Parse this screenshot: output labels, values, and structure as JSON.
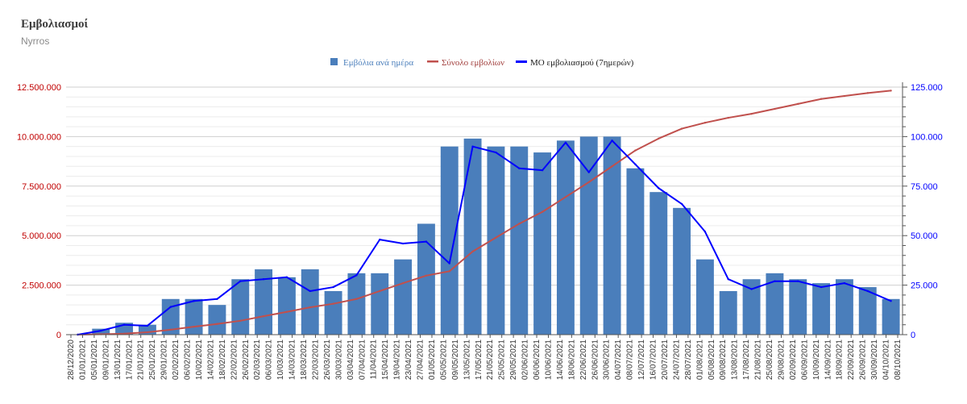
{
  "header": {
    "title": "Εμβολιασμοί",
    "subtitle": "Nyrros"
  },
  "legend": {
    "items": [
      {
        "label": "Εμβόλια ανά ημέρα",
        "color": "#4a7ebb",
        "kind": "bar"
      },
      {
        "label": "Σύνολο εμβολίων",
        "color": "#c0504d",
        "kind": "line"
      },
      {
        "label": "ΜΟ εμβολιασμού (7ημερών)",
        "color": "#0000ff",
        "kind": "line"
      }
    ]
  },
  "colors": {
    "bars": "#4a7ebb",
    "total_line": "#c0504d",
    "ma_line": "#0000ff",
    "left_axis_text": "#c00000",
    "right_axis_text": "#0000ff",
    "grid": "#d9d9d9"
  },
  "chart_data": {
    "type": "bar",
    "grid": true,
    "legend_position": "top",
    "categories": [
      "28/12/2020",
      "05/01/2021",
      "13/01/2021",
      "21/01/2021",
      "29/01/2021",
      "06/02/2021",
      "14/02/2021",
      "22/02/2021",
      "02/03/2021",
      "10/03/2021",
      "18/03/2021",
      "26/03/2021",
      "03/04/2021",
      "11/04/2021",
      "19/04/2021",
      "27/04/2021",
      "05/05/2021",
      "13/05/2021",
      "21/05/2021",
      "29/05/2021",
      "06/06/2021",
      "14/06/2021",
      "22/06/2021",
      "30/06/2021",
      "08/07/2021",
      "16/07/2021",
      "24/07/2021",
      "01/08/2021",
      "09/08/2021",
      "17/08/2021",
      "25/08/2021",
      "02/09/2021",
      "10/09/2021",
      "18/09/2021",
      "26/09/2021",
      "04/10/2021"
    ],
    "x_tick_labels": [
      "28/12/2020",
      "01/01/2021",
      "05/01/2021",
      "09/01/2021",
      "13/01/2021",
      "17/01/2021",
      "21/01/2021",
      "25/01/2021",
      "29/01/2021",
      "02/02/2021",
      "06/02/2021",
      "10/02/2021",
      "14/02/2021",
      "18/02/2021",
      "22/02/2021",
      "26/02/2021",
      "02/03/2021",
      "06/03/2021",
      "10/03/2021",
      "14/03/2021",
      "18/03/2021",
      "22/03/2021",
      "26/03/2021",
      "30/03/2021",
      "03/04/2021",
      "07/04/2021",
      "11/04/2021",
      "15/04/2021",
      "19/04/2021",
      "23/04/2021",
      "27/04/2021",
      "01/05/2021",
      "05/05/2021",
      "09/05/2021",
      "13/05/2021",
      "17/05/2021",
      "21/05/2021",
      "25/05/2021",
      "29/05/2021",
      "02/06/2021",
      "06/06/2021",
      "10/06/2021",
      "14/06/2021",
      "18/06/2021",
      "22/06/2021",
      "26/06/2021",
      "30/06/2021",
      "04/07/2021",
      "08/07/2021",
      "12/07/2021",
      "16/07/2021",
      "20/07/2021",
      "24/07/2021",
      "28/07/2021",
      "01/08/2021",
      "05/08/2021",
      "09/08/2021",
      "13/08/2021",
      "17/08/2021",
      "21/08/2021",
      "25/08/2021",
      "29/08/2021",
      "02/09/2021",
      "06/09/2021",
      "10/09/2021",
      "14/09/2021",
      "18/09/2021",
      "22/09/2021",
      "26/09/2021",
      "30/09/2021",
      "04/10/2021",
      "08/10/2021"
    ],
    "y_left": {
      "min": 0,
      "max": 12500000,
      "ticks": [
        "0",
        "2.500.000",
        "5.000.000",
        "7.500.000",
        "10.000.000",
        "12.500.000"
      ]
    },
    "y_right": {
      "min": 0,
      "max": 125000,
      "ticks": [
        "0",
        "25.000",
        "50.000",
        "75.000",
        "100.000",
        "125.000"
      ]
    },
    "series": [
      {
        "name": "Εμβόλια ανά ημέρα",
        "axis": "right",
        "kind": "bar",
        "values": [
          0,
          3000,
          6000,
          5000,
          18000,
          18000,
          15000,
          28000,
          33000,
          29000,
          33000,
          22000,
          31000,
          31000,
          38000,
          56000,
          95000,
          99000,
          95000,
          95000,
          92000,
          98000,
          100000,
          100000,
          84000,
          72000,
          64000,
          38000,
          22000,
          28000,
          31000,
          28000,
          26000,
          28000,
          24000,
          18000
        ]
      },
      {
        "name": "Σύνολο εμβολίων",
        "axis": "left",
        "kind": "line",
        "values": [
          0,
          20000,
          50000,
          120000,
          250000,
          400000,
          540000,
          700000,
          930000,
          1150000,
          1380000,
          1560000,
          1800000,
          2200000,
          2600000,
          2980000,
          3200000,
          4200000,
          4900000,
          5600000,
          6200000,
          6950000,
          7700000,
          8500000,
          9300000,
          9900000,
          10400000,
          10700000,
          10950000,
          11150000,
          11400000,
          11650000,
          11900000,
          12050000,
          12200000,
          12320000
        ]
      },
      {
        "name": "ΜΟ εμβολιασμού (7ημερών)",
        "axis": "right",
        "kind": "line",
        "values": [
          0,
          2000,
          5000,
          4500,
          14000,
          17000,
          18000,
          27000,
          28000,
          29000,
          22000,
          24000,
          30000,
          48000,
          46000,
          47000,
          36000,
          95000,
          92000,
          84000,
          83000,
          97000,
          82000,
          98000,
          86000,
          74000,
          66000,
          52000,
          28000,
          23000,
          27000,
          27000,
          24000,
          26000,
          22000,
          17000
        ]
      }
    ]
  }
}
